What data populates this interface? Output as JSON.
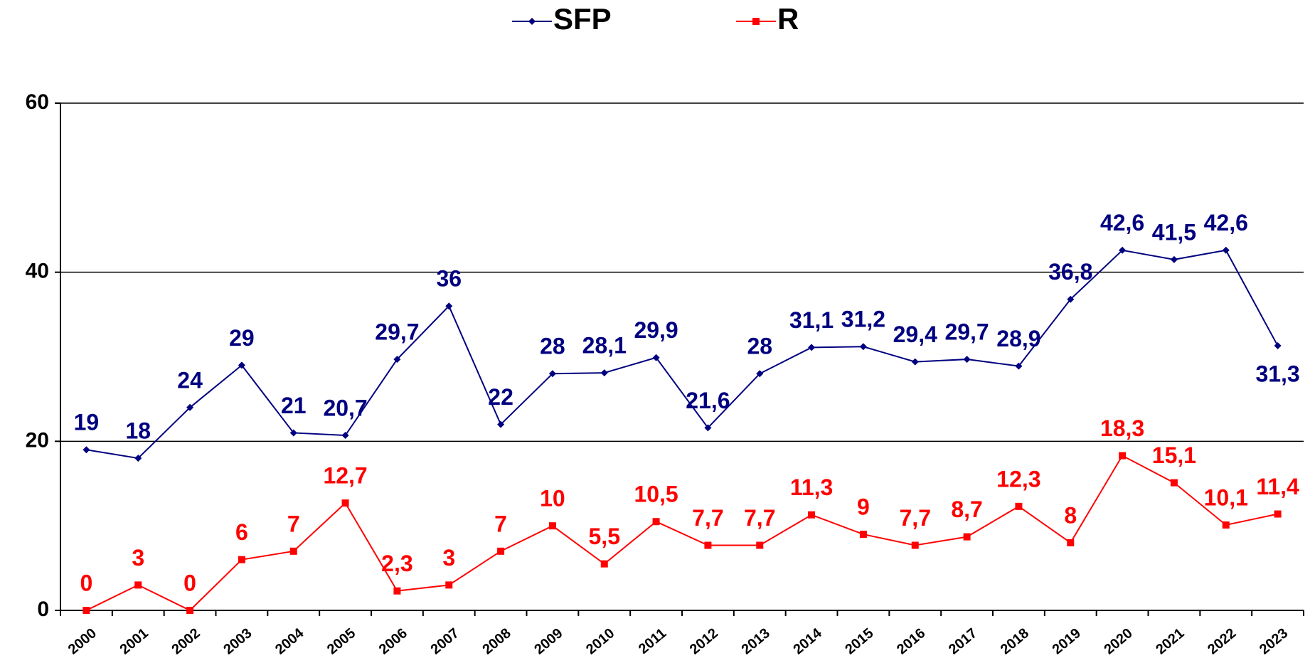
{
  "chart_data": {
    "type": "line",
    "categories": [
      "2000",
      "2001",
      "2002",
      "2003",
      "2004",
      "2005",
      "2006",
      "2007",
      "2008",
      "2009",
      "2010",
      "2011",
      "2012",
      "2013",
      "2014",
      "2015",
      "2016",
      "2017",
      "2018",
      "2019",
      "2020",
      "2021",
      "2022",
      "2023"
    ],
    "series": [
      {
        "name": "SFP",
        "color": "#000080",
        "values": [
          19,
          18,
          24,
          29,
          21,
          20.7,
          29.7,
          36,
          22,
          28,
          28.1,
          29.9,
          21.6,
          28,
          31.1,
          31.2,
          29.4,
          29.7,
          28.9,
          36.8,
          42.6,
          41.5,
          42.6,
          31.3
        ],
        "value_labels": [
          "19",
          "18",
          "24",
          "29",
          "21",
          "20,7",
          "29,7",
          "36",
          "22",
          "28",
          "28,1",
          "29,9",
          "21,6",
          "28",
          "31,1",
          "31,2",
          "29,4",
          "29,7",
          "28,9",
          "36,8",
          "42,6",
          "41,5",
          "42,6",
          "31,3"
        ]
      },
      {
        "name": "R",
        "color": "#ff0000",
        "values": [
          0,
          3,
          0,
          6,
          7,
          12.7,
          2.3,
          3,
          7,
          10,
          5.5,
          10.5,
          7.7,
          7.7,
          11.3,
          9,
          7.7,
          8.7,
          12.3,
          8,
          18.3,
          15.1,
          10.1,
          11.4
        ],
        "value_labels": [
          "0",
          "3",
          "0",
          "6",
          "7",
          "12,7",
          "2,3",
          "3",
          "7",
          "10",
          "5,5",
          "10,5",
          "7,7",
          "7,7",
          "11,3",
          "9",
          "7,7",
          "8,7",
          "12,3",
          "8",
          "18,3",
          "15,1",
          "10,1",
          "11,4"
        ]
      }
    ],
    "ylim": [
      0,
      60
    ],
    "yticks": [
      0,
      20,
      40,
      60
    ],
    "grid": true,
    "legend": "top"
  }
}
